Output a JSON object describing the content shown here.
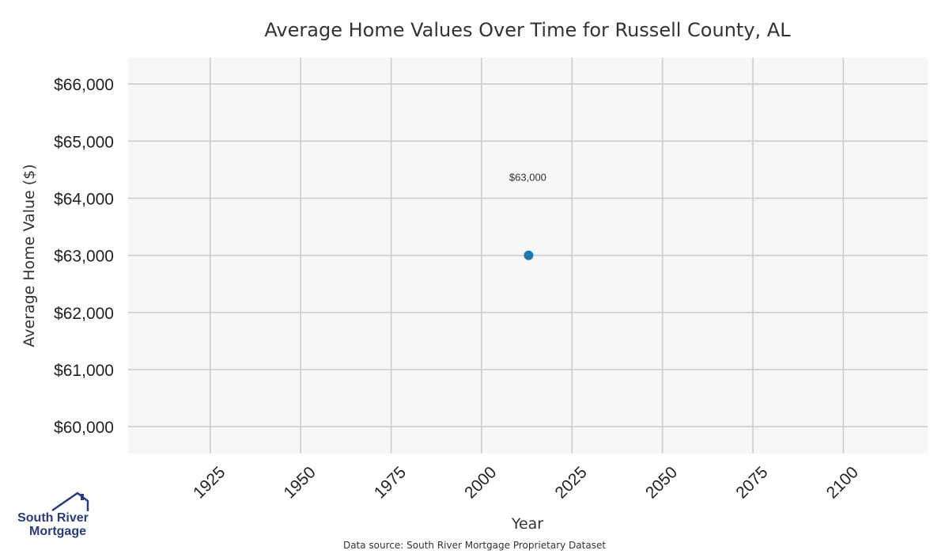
{
  "chart_data": {
    "type": "scatter",
    "title": "Average Home Values Over Time for Russell County, AL",
    "xlabel": "Year",
    "ylabel": "Average Home Value ($)",
    "x_ticks": [
      1925,
      1950,
      1975,
      2000,
      2025,
      2050,
      2075,
      2100
    ],
    "x_tick_labels": [
      "1925",
      "1950",
      "1975",
      "2000",
      "2025",
      "2050",
      "2075",
      "2100"
    ],
    "y_ticks": [
      60000,
      61000,
      62000,
      63000,
      64000,
      65000,
      66000
    ],
    "y_tick_labels": [
      "$60,000",
      "$61,000",
      "$62,000",
      "$63,000",
      "$64,000",
      "$65,000",
      "$66,000"
    ],
    "xlim": [
      1902.3,
      2123.3
    ],
    "ylim": [
      59530,
      66460
    ],
    "grid": true,
    "series": [
      {
        "points": [
          {
            "x": 2013,
            "y": 63000,
            "label": "$63,000"
          }
        ],
        "color": "#1f77b4"
      }
    ]
  },
  "colors": {
    "plot_background": "#f7f7f7",
    "grid": "#cccccc",
    "point": "#1f77b4",
    "logo": "#2a3a7a"
  },
  "footer": {
    "source": "Data source: South River Mortgage Proprietary Dataset"
  },
  "logo": {
    "line1": "South River",
    "line2": "Mortgage"
  }
}
